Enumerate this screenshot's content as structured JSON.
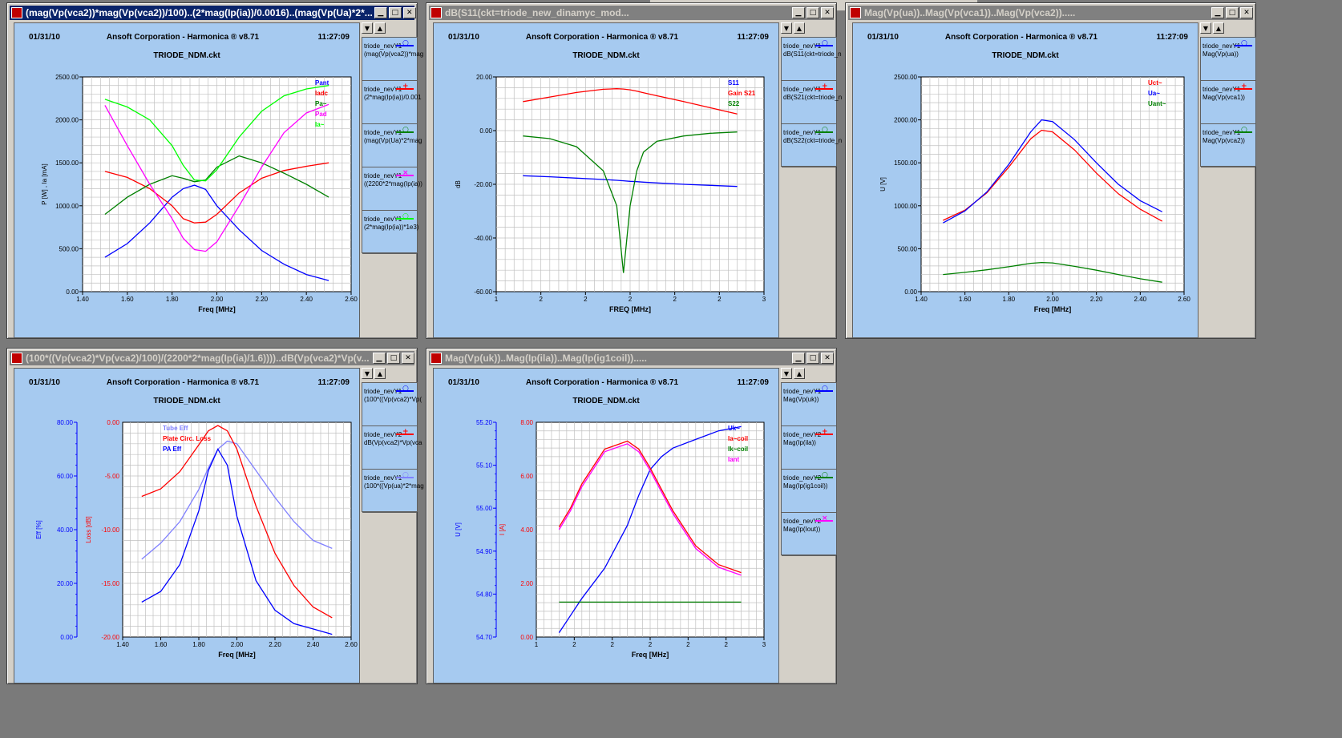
{
  "header": {
    "date": "01/31/10",
    "company": "Ansoft Corporation - Harmonica ® v8.71",
    "time": "11:27:09",
    "circuit": "TRIODE_NDM.ckt"
  },
  "controls": {
    "minimize": "▁",
    "maximize": "□",
    "close": "✕",
    "up": "▲",
    "down": "▼"
  },
  "windows": [
    {
      "title": "(mag(Vp(vca2))*mag(Vp(vca2))/100)..(2*mag(Ip(ia))/0.0016)..(mag(Vp(Ua)*2*...",
      "legend": [
        {
          "l1": "triode_nevY1",
          "l2": "(mag(Vp(vca2))*mag",
          "color": "#0000ff",
          "mark": "○"
        },
        {
          "l1": "triode_nevY1",
          "l2": "(2*mag(Ip(ia))/0.001",
          "color": "#ff0000",
          "mark": "+"
        },
        {
          "l1": "triode_nevY1",
          "l2": "(mag(Vp(Ua)*2*mag",
          "color": "#008000",
          "mark": "○"
        },
        {
          "l1": "triode_nevY1",
          "l2": "((2200*2*mag(Ip(ia))",
          "color": "#ff00ff",
          "mark": "×"
        },
        {
          "l1": "triode_nevY1",
          "l2": "(2*mag(Ip(ia))*1e3)",
          "color": "#00ff00",
          "mark": "○"
        }
      ]
    },
    {
      "title": "dB(S11(ckt=triode_new_dinamyc_mod...",
      "legend": [
        {
          "l1": "triode_nevY1",
          "l2": "dB(S11(ckt=triode_n",
          "color": "#0000ff",
          "mark": "○"
        },
        {
          "l1": "triode_nevY1",
          "l2": "dB(S21(ckt=triode_n",
          "color": "#ff0000",
          "mark": "+"
        },
        {
          "l1": "triode_nevY1",
          "l2": "dB(S22(ckt=triode_n",
          "color": "#008000",
          "mark": "○"
        }
      ]
    },
    {
      "title": "Mag(Vp(ua))..Mag(Vp(vca1))..Mag(Vp(vca2)).....",
      "legend": [
        {
          "l1": "triode_nevY1",
          "l2": "Mag(Vp(ua))",
          "color": "#0000ff",
          "mark": "○"
        },
        {
          "l1": "triode_nevY1",
          "l2": "Mag(Vp(vca1))",
          "color": "#ff0000",
          "mark": "+"
        },
        {
          "l1": "triode_nevY1",
          "l2": "Mag(Vp(vca2))",
          "color": "#008000",
          "mark": "○"
        }
      ]
    },
    {
      "title": "(100*((Vp(vca2)*Vp(vca2)/100)/(2200*2*mag(Ip(ia)/1.6))))..dB(Vp(vca2)*Vp(v...",
      "legend": [
        {
          "l1": "triode_nevY1",
          "l2": "(100*((Vp(vca2)*Vp(",
          "color": "#0000ff",
          "mark": "○"
        },
        {
          "l1": "triode_nevY2",
          "l2": "dB(Vp(vca2)*Vp(vca",
          "color": "#ff0000",
          "mark": "+"
        },
        {
          "l1": "triode_nevY1",
          "l2": "(100*((Vp(ua)*2*mag",
          "color": "#8080ff",
          "mark": "○"
        }
      ]
    },
    {
      "title": "Mag(Vp(uk))..Mag(Ip(ila))..Mag(Ip(ig1coil)).....",
      "legend": [
        {
          "l1": "triode_nevY1",
          "l2": "Mag(Vp(uk))",
          "color": "#0000ff",
          "mark": "○"
        },
        {
          "l1": "triode_nevY2",
          "l2": "Mag(Ip(ila))",
          "color": "#ff0000",
          "mark": "+"
        },
        {
          "l1": "triode_nevY2",
          "l2": "Mag(Ip(ig1coil))",
          "color": "#008000",
          "mark": "○"
        },
        {
          "l1": "triode_nevY2",
          "l2": "Mag(Ip(Iout))",
          "color": "#ff00ff",
          "mark": "×"
        }
      ]
    }
  ],
  "chart_data": [
    {
      "type": "line",
      "xlabel": "Freq [MHz]",
      "ylabel": "P  [W] ,  Ia  [mA]",
      "xlim": [
        1.4,
        2.6
      ],
      "ylim": [
        0,
        2500
      ],
      "xticks": [
        "1.40",
        "1.60",
        "1.80",
        "2.00",
        "2.20",
        "2.40",
        "2.60"
      ],
      "yticks": [
        "0.00",
        "500.00",
        "1000.00",
        "1500.00",
        "2000.00",
        "2500.00"
      ],
      "x": [
        1.5,
        1.6,
        1.7,
        1.8,
        1.85,
        1.9,
        1.95,
        2.0,
        2.1,
        2.2,
        2.3,
        2.4,
        2.5
      ],
      "series": [
        {
          "name": "Pant",
          "color": "#0000ff",
          "values": [
            400,
            560,
            800,
            1100,
            1200,
            1240,
            1190,
            1000,
            720,
            480,
            320,
            200,
            130
          ]
        },
        {
          "name": "Iadc",
          "color": "#ff0000",
          "values": [
            1400,
            1330,
            1200,
            1000,
            850,
            800,
            810,
            900,
            1150,
            1320,
            1410,
            1460,
            1500
          ]
        },
        {
          "name": "Pa~",
          "color": "#008000",
          "values": [
            900,
            1100,
            1250,
            1350,
            1320,
            1280,
            1300,
            1450,
            1580,
            1500,
            1380,
            1250,
            1100
          ]
        },
        {
          "name": "Pad",
          "color": "#ff00ff",
          "values": [
            2170,
            1700,
            1250,
            850,
            620,
            490,
            470,
            580,
            1000,
            1450,
            1850,
            2080,
            2180
          ]
        },
        {
          "name": "Ia~",
          "color": "#00ff00",
          "values": [
            2240,
            2150,
            2000,
            1700,
            1470,
            1300,
            1290,
            1420,
            1800,
            2100,
            2280,
            2360,
            2400
          ]
        }
      ],
      "legend_placement": "top-right",
      "grid": true
    },
    {
      "type": "line",
      "xlabel": "FREQ [MHz]",
      "ylabel": "dB",
      "xlim": [
        1,
        3
      ],
      "ylim": [
        -60,
        20
      ],
      "xticks": [
        "1",
        "2",
        "2",
        "2",
        "2",
        "2",
        "3"
      ],
      "yticks": [
        "-60.00",
        "-40.00",
        "-20.00",
        "0.00",
        "20.00"
      ],
      "x": [
        1.2,
        1.4,
        1.6,
        1.8,
        1.9,
        1.95,
        2.0,
        2.05,
        2.1,
        2.2,
        2.4,
        2.6,
        2.8
      ],
      "series": [
        {
          "name": "S11",
          "color": "#0000ff",
          "values": [
            -16.8,
            -17.2,
            -17.7,
            -18.2,
            -18.5,
            -18.7,
            -18.9,
            -19.0,
            -19.2,
            -19.5,
            -20.0,
            -20.4,
            -20.8
          ]
        },
        {
          "name": "Gain  S21",
          "color": "#ff0000",
          "values": [
            10.8,
            12.5,
            14.2,
            15.4,
            15.6,
            15.5,
            15.2,
            14.7,
            14.1,
            13.0,
            10.8,
            8.5,
            6.2
          ]
        },
        {
          "name": "S22",
          "color": "#008000",
          "values": [
            -2.0,
            -3.0,
            -6.0,
            -15.0,
            -28.0,
            -53.0,
            -28.0,
            -15.0,
            -8.0,
            -4.0,
            -2.0,
            -1.0,
            -0.5
          ]
        }
      ],
      "legend_placement": "top-right",
      "grid": true
    },
    {
      "type": "line",
      "xlabel": "Freq [MHz]",
      "ylabel": "U [V]",
      "xlim": [
        1.4,
        2.6
      ],
      "ylim": [
        0,
        2500
      ],
      "xticks": [
        "1.40",
        "1.60",
        "1.80",
        "2.00",
        "2.20",
        "2.40",
        "2.60"
      ],
      "yticks": [
        "0.00",
        "500.00",
        "1000.00",
        "1500.00",
        "2000.00",
        "2500.00"
      ],
      "x": [
        1.5,
        1.6,
        1.7,
        1.8,
        1.9,
        1.95,
        2.0,
        2.1,
        2.2,
        2.3,
        2.4,
        2.5
      ],
      "series": [
        {
          "name": "Uct~",
          "color": "#ff0000",
          "values": [
            830,
            950,
            1150,
            1450,
            1780,
            1880,
            1860,
            1650,
            1380,
            1140,
            960,
            820
          ]
        },
        {
          "name": "Ua~",
          "color": "#0000ff",
          "values": [
            800,
            940,
            1160,
            1480,
            1860,
            2000,
            1980,
            1770,
            1500,
            1250,
            1060,
            930
          ]
        },
        {
          "name": "Uant~",
          "color": "#008000",
          "values": [
            200,
            225,
            255,
            290,
            330,
            340,
            335,
            295,
            250,
            200,
            150,
            110
          ]
        }
      ],
      "legend_placement": "top-right",
      "grid": true
    },
    {
      "type": "line",
      "xlabel": "Freq [MHz]",
      "ylabel": "Eff  [%]",
      "ylabel2": "Loss  [dB]",
      "xlim": [
        1.4,
        2.6
      ],
      "ylim": [
        0,
        80
      ],
      "ylim2": [
        -20,
        0
      ],
      "xticks": [
        "1.40",
        "1.60",
        "1.80",
        "2.00",
        "2.20",
        "2.40",
        "2.60"
      ],
      "yticks": [
        "0.00",
        "20.00",
        "40.00",
        "60.00",
        "80.00"
      ],
      "yticks2": [
        "-20.00",
        "-15.00",
        "-10.00",
        "-5.00",
        "0.00"
      ],
      "x": [
        1.5,
        1.6,
        1.7,
        1.8,
        1.85,
        1.9,
        1.95,
        2.0,
        2.1,
        2.2,
        2.3,
        2.4,
        2.5
      ],
      "series": [
        {
          "name": "Tube Eff",
          "color": "#8080ff",
          "axis": "left",
          "values": [
            29,
            35,
            43,
            55,
            63,
            70,
            73,
            72,
            62,
            52,
            43,
            36,
            33
          ]
        },
        {
          "name": "Plate Circ. Loss",
          "color": "#ff0000",
          "axis": "right",
          "values": [
            -6.9,
            -6.2,
            -4.6,
            -2.1,
            -0.8,
            -0.3,
            -0.8,
            -2.5,
            -7.8,
            -12.2,
            -15.2,
            -17.2,
            -18.2
          ]
        },
        {
          "name": "PA Eff",
          "color": "#0000ff",
          "axis": "left",
          "values": [
            13,
            17,
            27,
            47,
            62,
            70,
            64,
            45,
            21,
            10,
            5,
            3,
            1
          ]
        }
      ],
      "legend_placement": "top-left",
      "grid": true
    },
    {
      "type": "line",
      "xlabel": "Freq [MHz]",
      "ylabel": "U [V]",
      "ylabel2": "I [A]",
      "xlim": [
        1,
        3
      ],
      "ylim": [
        54.7,
        55.2
      ],
      "ylim2": [
        0,
        8
      ],
      "xticks": [
        "1",
        "2",
        "2",
        "2",
        "2",
        "2",
        "3"
      ],
      "yticks": [
        "54.70",
        "54.80",
        "54.90",
        "55.00",
        "55.10",
        "55.20"
      ],
      "yticks2": [
        "0.00",
        "2.00",
        "4.00",
        "6.00",
        "8.00"
      ],
      "x": [
        1.2,
        1.3,
        1.4,
        1.6,
        1.8,
        1.9,
        2.0,
        2.1,
        2.2,
        2.4,
        2.6,
        2.8
      ],
      "series": [
        {
          "name": "Uk~",
          "color": "#0000ff",
          "axis": "left",
          "values": [
            54.71,
            54.75,
            54.79,
            54.86,
            54.96,
            55.03,
            55.09,
            55.12,
            55.14,
            55.16,
            55.18,
            55.19
          ]
        },
        {
          "name": "Ia~coil",
          "color": "#ff0000",
          "axis": "right",
          "values": [
            4.1,
            4.8,
            5.7,
            7.0,
            7.3,
            7.0,
            6.3,
            5.5,
            4.7,
            3.4,
            2.7,
            2.4
          ]
        },
        {
          "name": "Ik~coil",
          "color": "#008000",
          "axis": "right",
          "values": [
            1.3,
            1.3,
            1.3,
            1.3,
            1.3,
            1.3,
            1.3,
            1.3,
            1.3,
            1.3,
            1.3,
            1.3
          ]
        },
        {
          "name": "Iant",
          "color": "#ff00ff",
          "axis": "right",
          "values": [
            4.0,
            4.7,
            5.6,
            6.9,
            7.2,
            6.9,
            6.2,
            5.4,
            4.6,
            3.3,
            2.6,
            2.3
          ]
        }
      ],
      "legend_placement": "top-right",
      "grid": true
    }
  ]
}
